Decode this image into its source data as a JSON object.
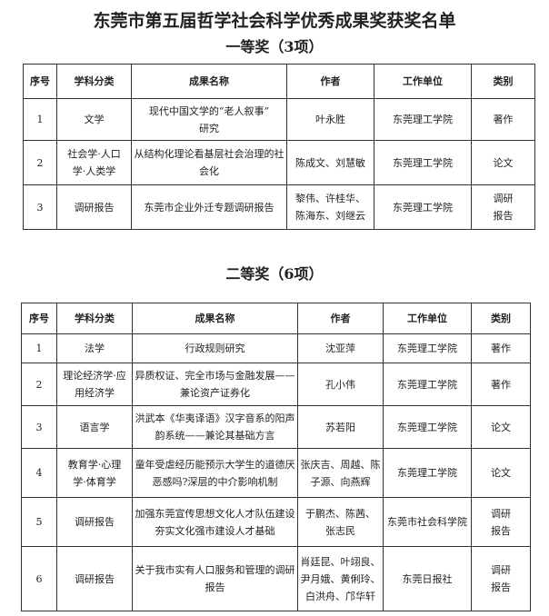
{
  "title": "东莞市第五届哲学社会科学优秀成果奖获奖名单",
  "headers": [
    "序号",
    "学科分类",
    "成果名称",
    "作者",
    "工作单位",
    "类别"
  ],
  "sections": [
    {
      "heading": "一等奖（3项）",
      "rows": [
        [
          "1",
          "文学",
          "现代中国文学的“老人叙事”\n研究",
          "叶永胜",
          "东莞理工学院",
          "著作"
        ],
        [
          "2",
          "社会学·人口\n学·人类学",
          "从结构化理论看基层社会治理的社\n会化",
          "陈成文、刘慧敏",
          "东莞理工学院",
          "论文"
        ],
        [
          "3",
          "调研报告",
          "东莞市企业外迁专题调研报告",
          "黎伟、许桂华、\n陈海东、刘继云",
          "东莞理工学院",
          "调研\n报告"
        ]
      ]
    },
    {
      "heading": "二等奖（6项）",
      "rows": [
        [
          "1",
          "法学",
          "行政规则研究",
          "沈亚萍",
          "东莞理工学院",
          "著作"
        ],
        [
          "2",
          "理论经济学·应\n用经济学",
          "异质权证、完全市场与金融发展——\n兼论资产证券化",
          "孔小伟",
          "东莞理工学院",
          "著作"
        ],
        [
          "3",
          "语言学",
          "洪武本《华夷译语》汉字音系的阳声\n韵系统——兼论其基础方言",
          "苏若阳",
          "东莞理工学院",
          "论文"
        ],
        [
          "4",
          "教育学·心理\n学·体育学",
          "童年受虐经历能预示大学生的道德厌\n恶感吗?深层的中介影响机制",
          "张庆吉、周越、陈\n子源、向燕辉",
          "东莞理工学院",
          "论文"
        ],
        [
          "5",
          "调研报告",
          "加强东莞宣传思想文化人才队伍建设\n夯实文化强市建设人才基础",
          "于鹏杰、陈茜、\n张志民",
          "东莞市社会科学院",
          "调研\n报告"
        ],
        [
          "6",
          "调研报告",
          "关于我市实有人口服务和管理的调研\n报告",
          "肖廷昆、叶翊良、\n尹月娥、黄俐玲、\n白洪舟、邝华轩",
          "东莞日报社",
          "调研\n报告"
        ]
      ]
    }
  ]
}
